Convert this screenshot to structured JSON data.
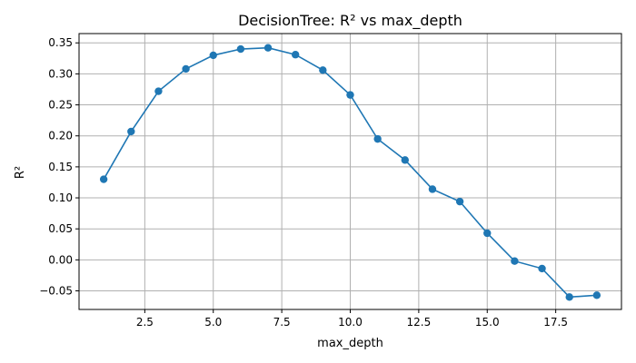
{
  "chart_data": {
    "type": "line",
    "title": "DecisionTree: R² vs max_depth",
    "xlabel": "max_depth",
    "ylabel": "R²",
    "xlim": [
      0.1,
      19.9
    ],
    "ylim": [
      -0.08,
      0.365
    ],
    "grid": true,
    "x_ticks": [
      2.5,
      5.0,
      7.5,
      10.0,
      12.5,
      15.0,
      17.5
    ],
    "x_tick_labels": [
      "2.5",
      "5.0",
      "7.5",
      "10.0",
      "12.5",
      "15.0",
      "17.5"
    ],
    "y_ticks": [
      -0.05,
      0.0,
      0.05,
      0.1,
      0.15,
      0.2,
      0.25,
      0.3,
      0.35
    ],
    "y_tick_labels": [
      "−0.05",
      "0.00",
      "0.05",
      "0.10",
      "0.15",
      "0.20",
      "0.25",
      "0.30",
      "0.35"
    ],
    "series": [
      {
        "color": "#1f77b4",
        "marker": "circle",
        "x": [
          1,
          2,
          3,
          4,
          5,
          6,
          7,
          8,
          9,
          10,
          11,
          12,
          13,
          14,
          15,
          16,
          17,
          18,
          19
        ],
        "y": [
          0.13,
          0.207,
          0.272,
          0.308,
          0.33,
          0.34,
          0.342,
          0.331,
          0.306,
          0.266,
          0.195,
          0.161,
          0.114,
          0.094,
          0.043,
          -0.002,
          -0.014,
          -0.06,
          -0.057
        ]
      }
    ]
  }
}
